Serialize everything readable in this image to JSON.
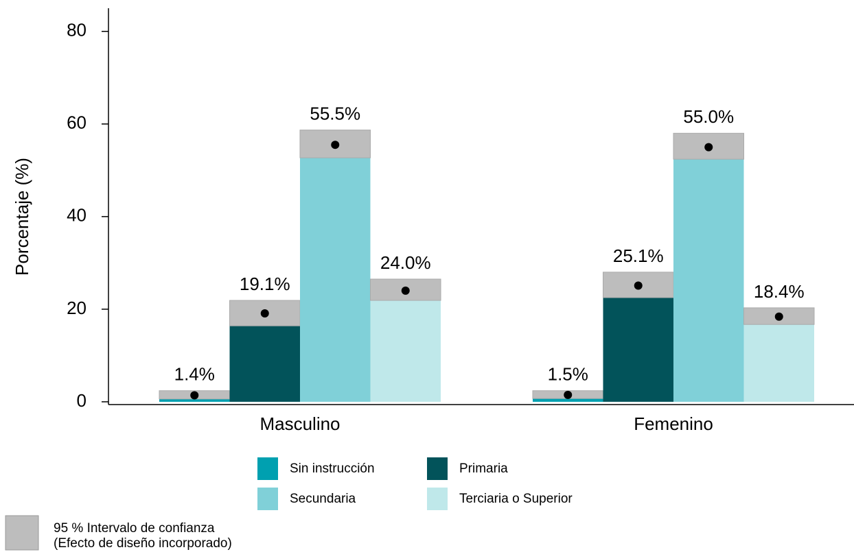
{
  "chart_data": {
    "type": "bar",
    "ylabel": "Porcentaje (%)",
    "categories": [
      "Masculino",
      "Femenino"
    ],
    "ylim": [
      -0.6,
      85
    ],
    "yticks": [
      0,
      20,
      40,
      60,
      80
    ],
    "ci_color": "#bdbdbd",
    "ci_legend": [
      "95 % Intervalo de confianza",
      "(Efecto de diseño incorporado)"
    ],
    "series": [
      {
        "name": "Sin instrucción",
        "color": "#00a0b0",
        "values": [
          1.4,
          1.5
        ],
        "value_labels": [
          "1.4%",
          "1.5%"
        ],
        "ci_low": [
          0.6,
          0.7
        ],
        "ci_high": [
          2.4,
          2.4
        ]
      },
      {
        "name": "Primaria",
        "color": "#02535a",
        "values": [
          19.1,
          25.1
        ],
        "value_labels": [
          "19.1%",
          "25.1%"
        ],
        "ci_low": [
          16.4,
          22.5
        ],
        "ci_high": [
          21.9,
          28.0
        ]
      },
      {
        "name": "Secundaria",
        "color": "#80d0d8",
        "values": [
          55.5,
          55.0
        ],
        "value_labels": [
          "55.5%",
          "55.0%"
        ],
        "ci_low": [
          52.7,
          52.4
        ],
        "ci_high": [
          58.7,
          58.0
        ]
      },
      {
        "name": "Terciaria o Superior",
        "color": "#bfe8ea",
        "values": [
          24.0,
          18.4
        ],
        "value_labels": [
          "24.0%",
          "18.4%"
        ],
        "ci_low": [
          21.9,
          16.7
        ],
        "ci_high": [
          26.5,
          20.3
        ]
      }
    ]
  }
}
